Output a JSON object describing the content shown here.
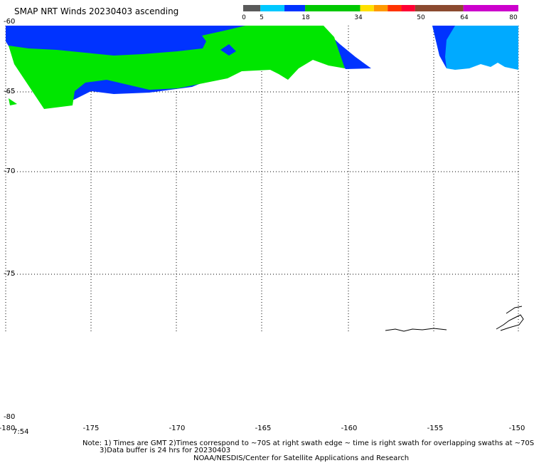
{
  "title": "SMAP NRT Winds 20230403 ascending",
  "colorbar": {
    "segments": [
      {
        "from": 0,
        "to": 5,
        "color": "#5a5a5a"
      },
      {
        "from": 5,
        "to": 12,
        "color": "#00c8ff"
      },
      {
        "from": 12,
        "to": 18,
        "color": "#0033ff"
      },
      {
        "from": 18,
        "to": 34,
        "color": "#00c800"
      },
      {
        "from": 34,
        "to": 38,
        "color": "#ffe000"
      },
      {
        "from": 38,
        "to": 42,
        "color": "#ff9900"
      },
      {
        "from": 42,
        "to": 46,
        "color": "#ff3300"
      },
      {
        "from": 46,
        "to": 50,
        "color": "#ff0033"
      },
      {
        "from": 50,
        "to": 64,
        "color": "#8b4a30"
      },
      {
        "from": 64,
        "to": 80,
        "color": "#cc00cc"
      }
    ],
    "tick_labels": [
      "0",
      "5",
      "18",
      "34",
      "50",
      "64",
      "80"
    ]
  },
  "map": {
    "lon_range": [
      -180,
      -150
    ],
    "lat_range": [
      -60,
      -80
    ],
    "lat_labels": [
      "-60",
      "-65",
      "-70",
      "-75",
      "-80"
    ],
    "lon_labels": [
      "-180",
      "-175",
      "-170",
      "-165",
      "-160",
      "-155",
      "-150"
    ],
    "time_label": "7:54",
    "wind_colors": {
      "low": "#0033ff",
      "mid": "#00e600",
      "light": "#00aaff"
    }
  },
  "notes": {
    "line1": "Note: 1) Times are GMT 2)Times correspond to ~70S at right swath edge ~ time is right swath for overlapping swaths at ~70S",
    "line2": "3)Data buffer is 24 hrs for 20230403",
    "line3": "NOAA/NESDIS/Center for Satellite Applications and Research"
  }
}
